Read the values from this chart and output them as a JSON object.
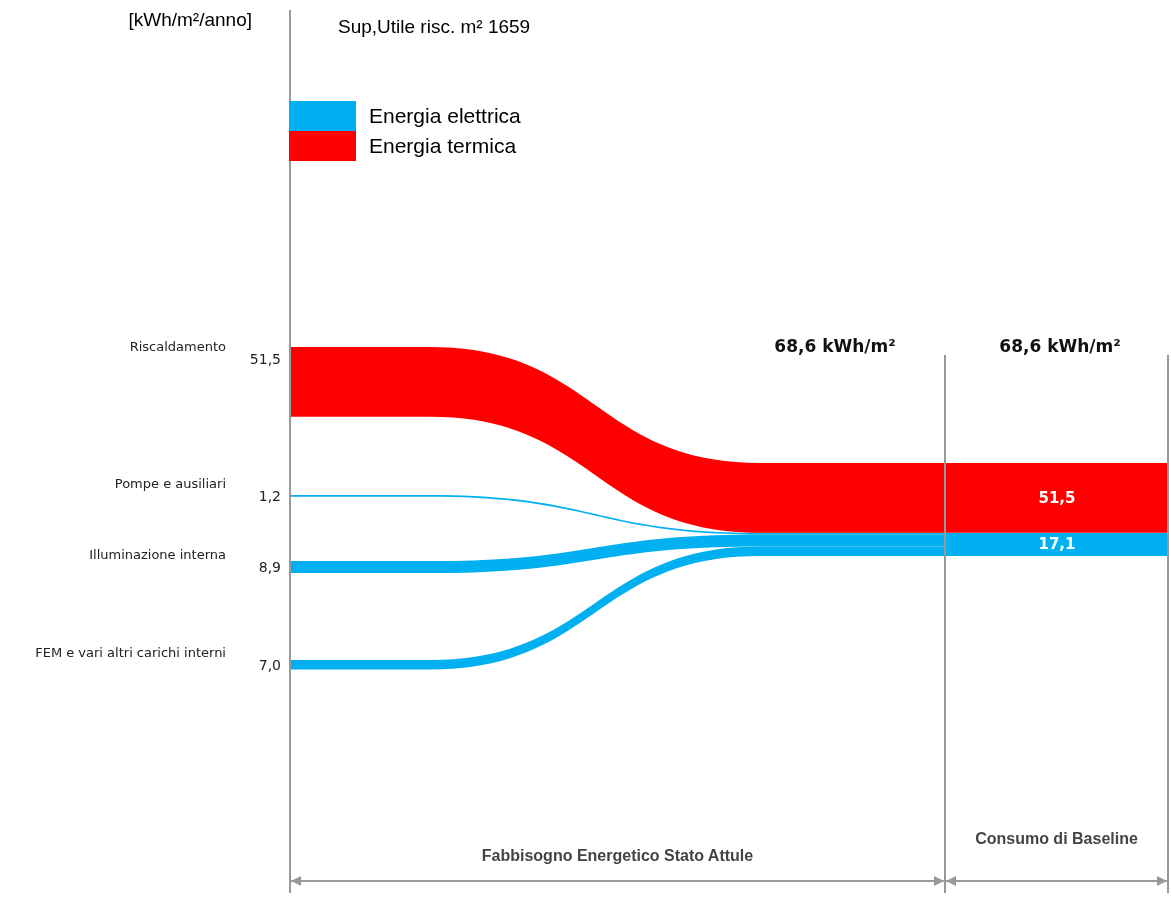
{
  "chart_data": {
    "type": "other",
    "title": "Sup,Utile risc. m² 1659",
    "ylabel": "[kWh/m²/anno]",
    "categories": [
      "Riscaldamento",
      "Pompe e ausiliari",
      "Illuminazione interna",
      "FEM e vari altri carichi interni"
    ],
    "series": [
      {
        "name": "Energia elettrica",
        "color": "#00b0f0",
        "values": [
          null,
          1.2,
          8.9,
          7.0
        ],
        "value_labels": [
          null,
          "1,2",
          "8,9",
          "7,0"
        ]
      },
      {
        "name": "Energia termica",
        "color": "#ff0000",
        "values": [
          51.5,
          null,
          null,
          null
        ],
        "value_labels": [
          "51,5",
          null,
          null,
          null
        ]
      }
    ],
    "totals": [
      "17,1",
      "51,5"
    ],
    "legend": "top left",
    "annotations": [
      "68,6 kWh/m²",
      "68,6 kWh/m²",
      "Fabbisogno Energetico Stato Attule",
      "Consumo di Baseline"
    ]
  }
}
